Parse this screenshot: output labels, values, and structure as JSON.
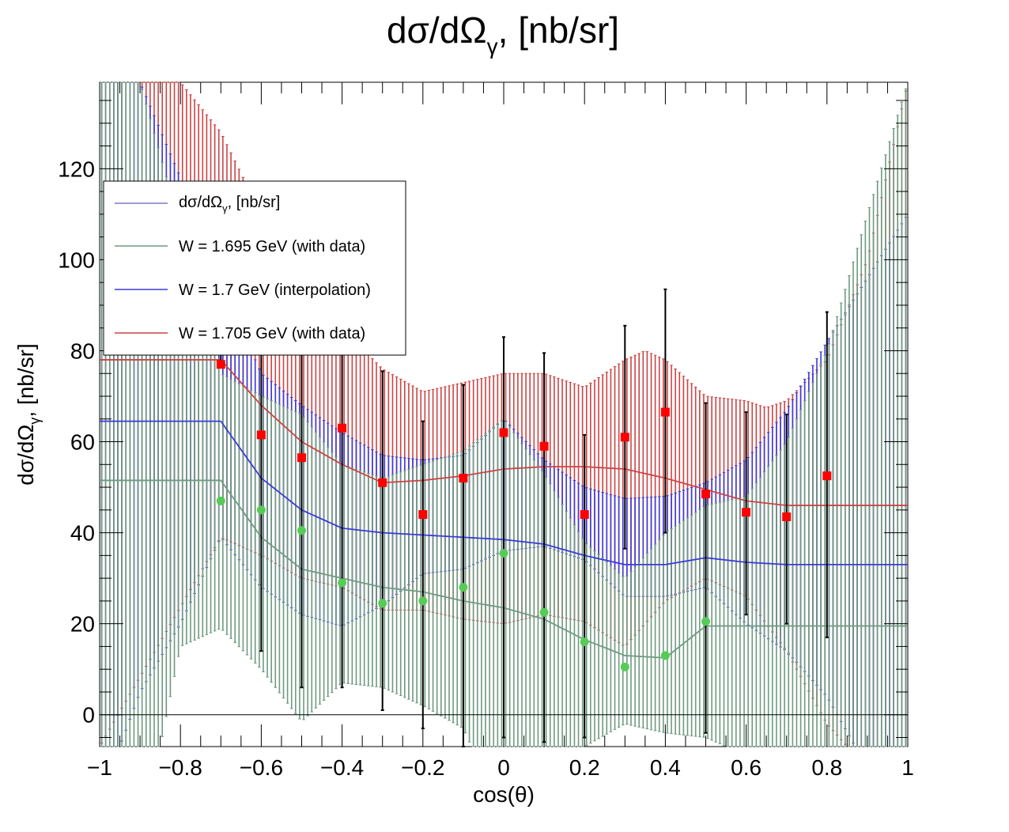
{
  "chart_data": {
    "type": "line",
    "title": "dσ/dΩγ, [nb/sr]",
    "title_main": "dσ/dΩ",
    "title_sub": "γ",
    "title_tail": ", [nb/sr]",
    "xlabel": "cos(θ)",
    "ylabel_main": "dσ/dΩ",
    "ylabel_sub": "γ",
    "ylabel_tail": ", [nb/sr]",
    "xlim": [
      -1,
      1
    ],
    "ylim": [
      -7,
      139
    ],
    "x_ticks": [
      {
        "v": -1,
        "label": "−1"
      },
      {
        "v": -0.8,
        "label": "−0.8"
      },
      {
        "v": -0.6,
        "label": "−0.6"
      },
      {
        "v": -0.4,
        "label": "−0.4"
      },
      {
        "v": -0.2,
        "label": "−0.2"
      },
      {
        "v": 0,
        "label": "0"
      },
      {
        "v": 0.2,
        "label": "0.2"
      },
      {
        "v": 0.4,
        "label": "0.4"
      },
      {
        "v": 0.6,
        "label": "0.6"
      },
      {
        "v": 0.8,
        "label": "0.8"
      },
      {
        "v": 1,
        "label": "1"
      }
    ],
    "y_ticks": [
      {
        "v": 0,
        "label": "0"
      },
      {
        "v": 20,
        "label": "20"
      },
      {
        "v": 40,
        "label": "40"
      },
      {
        "v": 60,
        "label": "60"
      },
      {
        "v": 80,
        "label": "80"
      },
      {
        "v": 100,
        "label": "100"
      },
      {
        "v": 120,
        "label": "120"
      }
    ],
    "legend": {
      "placement": "top-left",
      "entries": [
        {
          "label_main": "dσ/dΩ",
          "label_sub": "γ",
          "label_tail": ", [nb/sr]",
          "color": "#3a3aa0"
        },
        {
          "label": "W = 1.695 GeV (with data)",
          "color": "#6f9a80"
        },
        {
          "label": "W = 1.7 GeV (interpolation)",
          "color": "#3b3bd8"
        },
        {
          "label": "W = 1.705 GeV (with data)",
          "color": "#cc4444"
        }
      ]
    },
    "series": [
      {
        "name": "W = 1.705 GeV (with data)",
        "color": "#cc4444",
        "central": [
          [
            -1,
            78
          ],
          [
            -0.7,
            78
          ],
          [
            -0.6,
            68
          ],
          [
            -0.5,
            60
          ],
          [
            -0.4,
            55
          ],
          [
            -0.3,
            51
          ],
          [
            -0.2,
            51.5
          ],
          [
            -0.1,
            52.5
          ],
          [
            0,
            54
          ],
          [
            0.1,
            54.5
          ],
          [
            0.2,
            54.5
          ],
          [
            0.3,
            54
          ],
          [
            0.4,
            52
          ],
          [
            0.5,
            49.5
          ],
          [
            0.6,
            47
          ],
          [
            0.7,
            46
          ],
          [
            0.8,
            46
          ],
          [
            1,
            46
          ]
        ],
        "upper": [
          [
            -1,
            139
          ],
          [
            -0.8,
            139
          ],
          [
            -0.7,
            128
          ],
          [
            -0.6,
            110
          ],
          [
            -0.5,
            95
          ],
          [
            -0.4,
            85
          ],
          [
            -0.3,
            76
          ],
          [
            -0.2,
            71
          ],
          [
            -0.1,
            73
          ],
          [
            0,
            75
          ],
          [
            0.1,
            75
          ],
          [
            0.2,
            72
          ],
          [
            0.3,
            78
          ],
          [
            0.35,
            80
          ],
          [
            0.4,
            78
          ],
          [
            0.5,
            70
          ],
          [
            0.6,
            69
          ],
          [
            0.65,
            67.5
          ],
          [
            0.7,
            69
          ],
          [
            0.8,
            78
          ],
          [
            0.9,
            100
          ],
          [
            1,
            139
          ]
        ],
        "lower": [
          [
            -1,
            -7
          ],
          [
            -0.7,
            39
          ],
          [
            -0.6,
            35
          ],
          [
            -0.5,
            30
          ],
          [
            -0.4,
            28
          ],
          [
            -0.3,
            23
          ],
          [
            -0.2,
            23
          ],
          [
            -0.1,
            21
          ],
          [
            0,
            20
          ],
          [
            0.1,
            22
          ],
          [
            0.2,
            20.5
          ],
          [
            0.3,
            15
          ],
          [
            0.4,
            25
          ],
          [
            0.5,
            30
          ],
          [
            0.6,
            26
          ],
          [
            0.7,
            14
          ],
          [
            0.8,
            -2
          ],
          [
            0.85,
            -7
          ],
          [
            1,
            -7
          ]
        ]
      },
      {
        "name": "W = 1.7 GeV (interpolation)",
        "color": "#3b3bd8",
        "central": [
          [
            -1,
            64.5
          ],
          [
            -0.7,
            64.5
          ],
          [
            -0.6,
            52
          ],
          [
            -0.5,
            45
          ],
          [
            -0.4,
            41
          ],
          [
            -0.3,
            40
          ],
          [
            -0.2,
            39.5
          ],
          [
            -0.1,
            39
          ],
          [
            0,
            38.5
          ],
          [
            0.1,
            37.5
          ],
          [
            0.2,
            35
          ],
          [
            0.3,
            33
          ],
          [
            0.4,
            33
          ],
          [
            0.5,
            34.5
          ],
          [
            0.6,
            33.5
          ],
          [
            0.7,
            33
          ],
          [
            1,
            33
          ]
        ],
        "upper": [
          [
            -1,
            139
          ],
          [
            -0.9,
            139
          ],
          [
            -0.8,
            118
          ],
          [
            -0.7,
            95
          ],
          [
            -0.6,
            75
          ],
          [
            -0.5,
            68
          ],
          [
            -0.4,
            62
          ],
          [
            -0.3,
            57
          ],
          [
            -0.2,
            56
          ],
          [
            -0.1,
            57
          ],
          [
            0,
            65
          ],
          [
            0.1,
            56
          ],
          [
            0.2,
            50
          ],
          [
            0.3,
            47.5
          ],
          [
            0.4,
            48
          ],
          [
            0.5,
            51
          ],
          [
            0.6,
            56
          ],
          [
            0.7,
            67
          ],
          [
            0.8,
            82
          ],
          [
            0.9,
            96
          ],
          [
            1,
            110
          ]
        ],
        "lower": [
          [
            -1,
            -7
          ],
          [
            -0.95,
            -7
          ],
          [
            -0.9,
            5
          ],
          [
            -0.8,
            20
          ],
          [
            -0.7,
            39
          ],
          [
            -0.6,
            28
          ],
          [
            -0.5,
            22
          ],
          [
            -0.4,
            19.5
          ],
          [
            -0.3,
            24
          ],
          [
            -0.2,
            31
          ],
          [
            -0.1,
            32
          ],
          [
            0,
            36
          ],
          [
            0.1,
            37
          ],
          [
            0.2,
            34
          ],
          [
            0.3,
            26
          ],
          [
            0.4,
            26
          ],
          [
            0.5,
            28
          ],
          [
            0.6,
            20
          ],
          [
            0.7,
            14
          ],
          [
            0.8,
            4
          ],
          [
            0.87,
            -7
          ],
          [
            1,
            -7
          ]
        ]
      },
      {
        "name": "W = 1.695 GeV (with data)",
        "color": "#6f9a80",
        "central": [
          [
            -1,
            51.5
          ],
          [
            -0.7,
            51.5
          ],
          [
            -0.6,
            39
          ],
          [
            -0.5,
            32
          ],
          [
            -0.4,
            30
          ],
          [
            -0.3,
            28
          ],
          [
            -0.2,
            27
          ],
          [
            -0.1,
            25
          ],
          [
            0,
            23.5
          ],
          [
            0.1,
            21
          ],
          [
            0.2,
            16.5
          ],
          [
            0.3,
            13
          ],
          [
            0.4,
            12.5
          ],
          [
            0.5,
            19.5
          ],
          [
            0.6,
            19.5
          ],
          [
            0.7,
            19.5
          ],
          [
            1,
            19.5
          ]
        ],
        "upper": [
          [
            -1,
            139
          ],
          [
            -0.9,
            139
          ],
          [
            -0.7,
            75
          ],
          [
            -0.6,
            70
          ],
          [
            -0.5,
            66
          ],
          [
            -0.4,
            55
          ],
          [
            -0.3,
            52
          ],
          [
            -0.2,
            55
          ],
          [
            -0.1,
            58
          ],
          [
            0,
            65
          ],
          [
            0.1,
            53
          ],
          [
            0.2,
            38
          ],
          [
            0.3,
            30
          ],
          [
            0.4,
            40
          ],
          [
            0.5,
            46
          ],
          [
            0.6,
            48
          ],
          [
            0.7,
            60
          ],
          [
            0.8,
            80
          ],
          [
            0.9,
            110
          ],
          [
            1,
            139
          ]
        ],
        "lower": [
          [
            -1,
            -7
          ],
          [
            -0.85,
            -7
          ],
          [
            -0.8,
            15
          ],
          [
            -0.7,
            19
          ],
          [
            -0.6,
            10
          ],
          [
            -0.5,
            -1.5
          ],
          [
            -0.4,
            7
          ],
          [
            -0.3,
            6
          ],
          [
            -0.2,
            2
          ],
          [
            -0.1,
            -3
          ],
          [
            -0.08,
            -7
          ],
          [
            0.2,
            -7
          ],
          [
            0.3,
            -2
          ],
          [
            0.4,
            -4
          ],
          [
            0.5,
            -5
          ],
          [
            0.55,
            -7
          ],
          [
            1,
            -7
          ]
        ]
      }
    ],
    "data_points": [
      {
        "name": "W = 1.705 GeV data",
        "color": "#ff0000",
        "marker": "square",
        "points": [
          {
            "x": -0.7,
            "y": 77,
            "err_low": 77,
            "err_high": 115
          },
          {
            "x": -0.6,
            "y": 61.5,
            "err_low": 14,
            "err_high": 89
          },
          {
            "x": -0.5,
            "y": 56.5,
            "err_low": 6,
            "err_high": 81
          },
          {
            "x": -0.4,
            "y": 63,
            "err_low": 6,
            "err_high": 99
          },
          {
            "x": -0.3,
            "y": 51,
            "err_low": 1,
            "err_high": 75.5
          },
          {
            "x": -0.2,
            "y": 44,
            "err_low": -3,
            "err_high": 64.5
          },
          {
            "x": -0.1,
            "y": 52,
            "err_low": -7,
            "err_high": 72.5
          },
          {
            "x": 0,
            "y": 62,
            "err_low": -5,
            "err_high": 83
          },
          {
            "x": 0.1,
            "y": 59,
            "err_low": -6,
            "err_high": 79.5
          },
          {
            "x": 0.2,
            "y": 44,
            "err_low": -5,
            "err_high": 61.5
          },
          {
            "x": 0.3,
            "y": 61,
            "err_low": 36.5,
            "err_high": 85.5
          },
          {
            "x": 0.4,
            "y": 66.5,
            "err_low": 40,
            "err_high": 93.5
          },
          {
            "x": 0.5,
            "y": 48.5,
            "err_low": -4,
            "err_high": 68.5
          },
          {
            "x": 0.6,
            "y": 44.5,
            "err_low": 22,
            "err_high": 66.5
          },
          {
            "x": 0.7,
            "y": 43.5,
            "err_low": 20,
            "err_high": 66
          },
          {
            "x": 0.8,
            "y": 52.5,
            "err_low": 17,
            "err_high": 88.5
          }
        ]
      },
      {
        "name": "W = 1.695 GeV data",
        "color": "#55cc55",
        "marker": "circle",
        "points": [
          {
            "x": -0.7,
            "y": 47
          },
          {
            "x": -0.6,
            "y": 45
          },
          {
            "x": -0.5,
            "y": 40.5
          },
          {
            "x": -0.4,
            "y": 29
          },
          {
            "x": -0.3,
            "y": 24.5
          },
          {
            "x": -0.2,
            "y": 25
          },
          {
            "x": -0.1,
            "y": 28
          },
          {
            "x": 0,
            "y": 35.5
          },
          {
            "x": 0.1,
            "y": 22.5
          },
          {
            "x": 0.2,
            "y": 16
          },
          {
            "x": 0.3,
            "y": 10.5
          },
          {
            "x": 0.4,
            "y": 13
          },
          {
            "x": 0.5,
            "y": 20.5
          }
        ]
      }
    ]
  }
}
